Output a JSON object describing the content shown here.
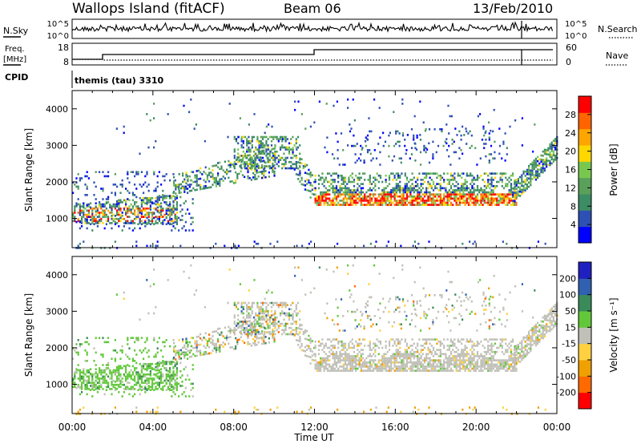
{
  "header": {
    "station": "Wallops Island (fitACF)",
    "beam": "Beam 06",
    "date": "13/Feb/2010"
  },
  "panels": {
    "nsky": {
      "label": "N.Sky",
      "right_label": "N.Search",
      "left_ticks": [
        "10^5",
        "10^0"
      ],
      "right_ticks": [
        "10^5",
        "10^0"
      ]
    },
    "freq": {
      "label_top": "Freq.",
      "label_bottom": "[MHz]",
      "right_label": "Nave",
      "left_ticks": [
        "18",
        "8"
      ],
      "right_ticks": [
        "60",
        "0"
      ]
    },
    "cpid": {
      "label": "CPID",
      "value": "themis (tau) 3310"
    }
  },
  "colors": {
    "power_scale": [
      "#0000ff",
      "#2d50b4",
      "#3c8c64",
      "#5aa05a",
      "#78c850",
      "#ffd700",
      "#ffa500",
      "#ff6400",
      "#ff0000"
    ],
    "velocity_scale": [
      "#2020c0",
      "#3060b0",
      "#3a8a5a",
      "#62c83a",
      "#c0c0b8",
      "#ffd040",
      "#f0a000",
      "#ff6a00",
      "#ff0000"
    ]
  },
  "chart_data": [
    {
      "type": "heatmap",
      "name": "power",
      "ylabel": "Slant Range [km]",
      "yticks": [
        "1000",
        "2000",
        "3000",
        "4000"
      ],
      "ylim": [
        200,
        4500
      ],
      "xlim_hours": [
        0,
        24
      ],
      "colorbar_label": "Power [dB]",
      "colorbar_ticks": [
        "4",
        "8",
        "12",
        "16",
        "20",
        "24",
        "28"
      ],
      "colorbar_range": [
        0,
        32
      ]
    },
    {
      "type": "heatmap",
      "name": "velocity",
      "ylabel": "Slant Range [km]",
      "yticks": [
        "1000",
        "2000",
        "3000",
        "4000"
      ],
      "ylim": [
        200,
        4500
      ],
      "xlim_hours": [
        0,
        24
      ],
      "xlabel": "Time UT",
      "xticks": [
        "00:00",
        "04:00",
        "08:00",
        "12:00",
        "16:00",
        "20:00",
        "00:00"
      ],
      "colorbar_label": "Velocity [m s⁻¹]",
      "colorbar_ticks": [
        "200",
        "100",
        "50",
        "15",
        "-15",
        "-50",
        "-100",
        "-200"
      ]
    }
  ]
}
